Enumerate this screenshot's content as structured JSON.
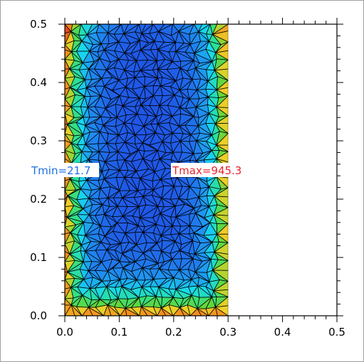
{
  "chart_data": {
    "type": "heatmap",
    "title": "",
    "xlabel": "",
    "ylabel": "",
    "xlim": [
      0,
      0.5
    ],
    "ylim": [
      0,
      0.5
    ],
    "x_ticks": [
      "0.0",
      "0.1",
      "0.2",
      "0.3",
      "0.4",
      "0.5"
    ],
    "y_ticks": [
      "0.0",
      "0.1",
      "0.2",
      "0.3",
      "0.4",
      "0.5"
    ],
    "domain": {
      "x": [
        0,
        0.3
      ],
      "y": [
        0,
        0.5
      ]
    },
    "mesh": "triangular",
    "color_scale": [
      "#1f55e6",
      "#1f8ff0",
      "#18d8ef",
      "#2fe08a",
      "#63d63a",
      "#ecd128",
      "#f48a1c",
      "#e8411a"
    ],
    "field_description": "cool centre, hot left, right and bottom edges",
    "annotations": [
      {
        "text": "Tmin=21.7",
        "color": "#1e6fe6"
      },
      {
        "text": "Tmax=945.3",
        "color": "#e8242c"
      }
    ]
  }
}
